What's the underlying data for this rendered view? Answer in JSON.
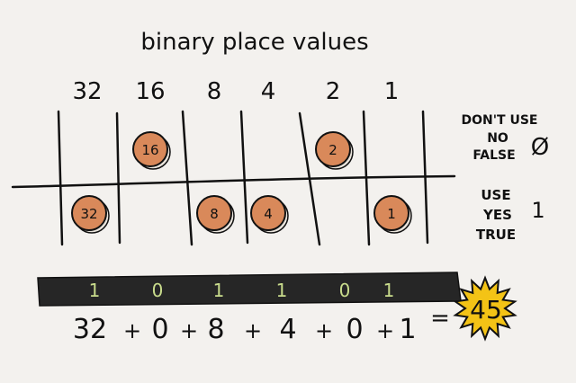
{
  "title": "binary place values",
  "columns": [
    {
      "place": "32",
      "coin": "32",
      "row": "use"
    },
    {
      "place": "16",
      "coin": "16",
      "row": "dont"
    },
    {
      "place": "8",
      "coin": "8",
      "row": "use"
    },
    {
      "place": "4",
      "coin": "4",
      "row": "use"
    },
    {
      "place": "2",
      "coin": "2",
      "row": "dont"
    },
    {
      "place": "1",
      "coin": "1",
      "row": "use"
    }
  ],
  "rows": {
    "dont": {
      "lines": [
        "DON'T USE",
        "NO",
        "FALSE"
      ],
      "symbol": "Ø"
    },
    "use": {
      "lines": [
        "USE",
        "YES",
        "TRUE"
      ],
      "symbol": "1"
    }
  },
  "bits": [
    "1",
    "0",
    "1",
    "1",
    "0",
    "1"
  ],
  "equation": {
    "terms": [
      "32",
      "+",
      "0",
      "+",
      "8",
      "+",
      "4",
      "+",
      "0",
      "+",
      "1"
    ],
    "equals": "=",
    "result": "45"
  },
  "colors": {
    "coin": "#d9895a",
    "coin_shadow": "#c97a4a",
    "bar": "#262626",
    "bit": "#c9dc8c",
    "burst": "#f3c316",
    "background": "#f3f1ee"
  }
}
